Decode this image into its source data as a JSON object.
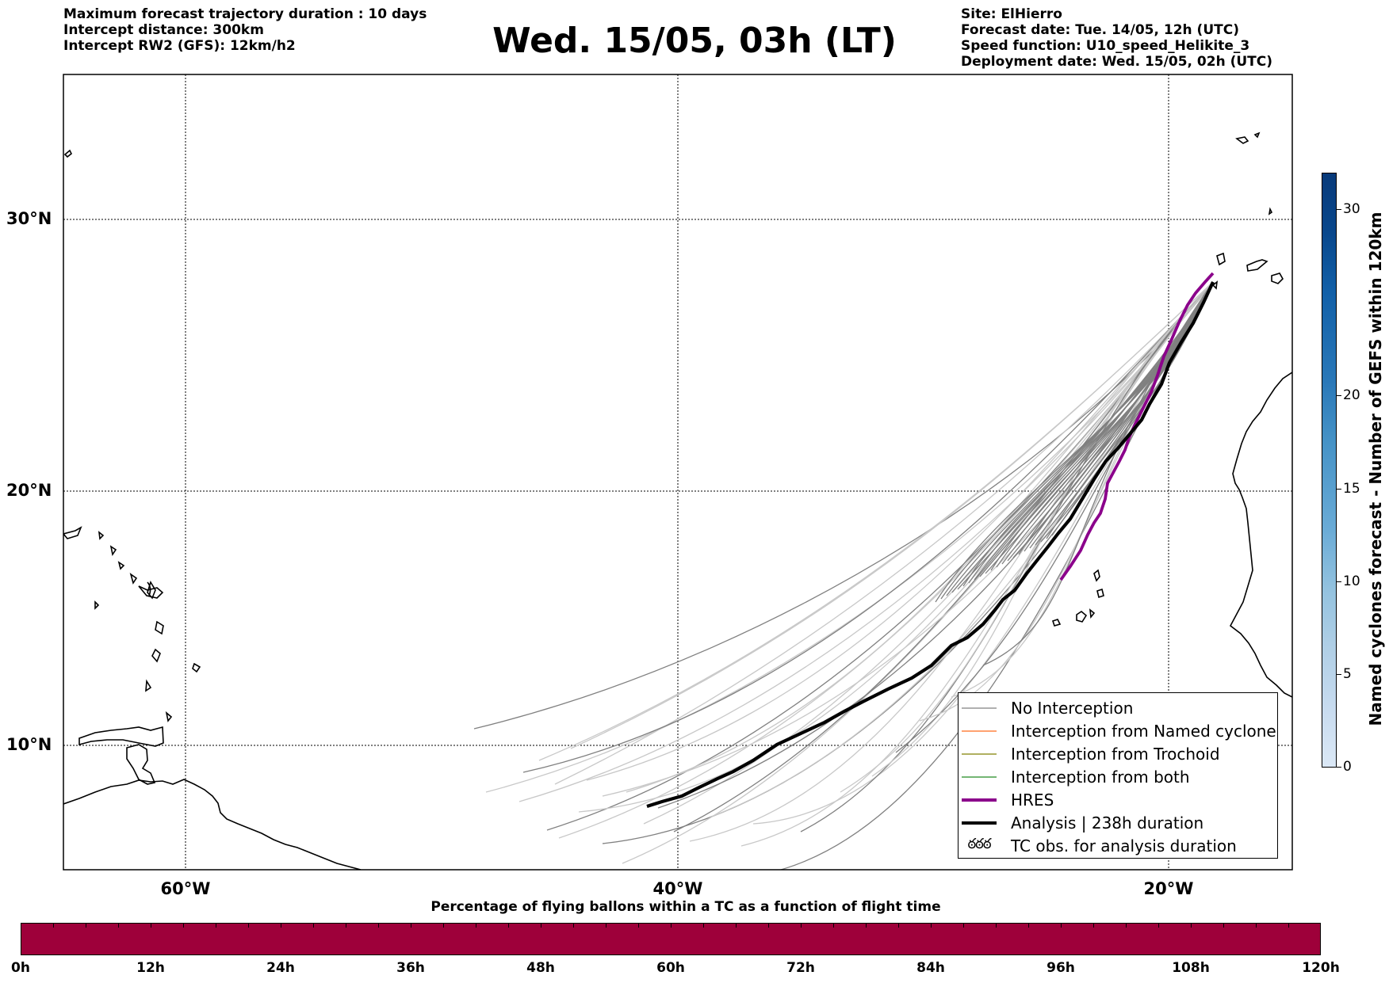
{
  "header_left": {
    "line1": "Maximum forecast trajectory duration : 10 days",
    "line2": "Intercept distance: 300km",
    "line3": "Intercept RW2 (GFS):  12km/h2"
  },
  "title": "Wed. 15/05, 03h (LT)",
  "header_right": {
    "line1": "Site: ElHierro",
    "line2": "Forecast date: Tue. 14/05, 12h (UTC)",
    "line3": "Speed function: U10_speed_Helikite_3",
    "line4": "Deployment date: Wed. 15/05, 02h (UTC)"
  },
  "map": {
    "lat_labels": [
      "30°N",
      "20°N",
      "10°N"
    ],
    "lon_labels": [
      "60°W",
      "40°W",
      "20°W"
    ],
    "colors": {
      "ensemble_near": "#808080",
      "ensemble_far": "#c8c8c8",
      "analysis": "#000000",
      "hres": "#8b008b"
    }
  },
  "legend": {
    "items": [
      {
        "label": "No Interception",
        "color": "#808080",
        "style": "thin"
      },
      {
        "label": "Interception from Named cyclone",
        "color": "#ff6a1a",
        "style": "thin"
      },
      {
        "label": "Interception from Trochoid",
        "color": "#808000",
        "style": "thin"
      },
      {
        "label": "Interception from both",
        "color": "#228b22",
        "style": "thin"
      },
      {
        "label": "HRES",
        "color": "#8b008b",
        "style": "thick"
      },
      {
        "label": "Analysis | 238h duration",
        "color": "#000000",
        "style": "thick"
      },
      {
        "label": "TC obs. for analysis duration",
        "color": "#000000",
        "style": "symbol",
        "symbol": "ఠ"
      }
    ]
  },
  "colorbar_right": {
    "label": "Named cyclones forecast - Number of GEFS within 120km",
    "ticks": [
      "0",
      "5",
      "10",
      "15",
      "20",
      "30"
    ]
  },
  "colorbar_bottom": {
    "title": "Percentage of flying ballons within a TC as a function of flight time",
    "color": "#9e003a",
    "ticks": [
      "0h",
      "12h",
      "24h",
      "36h",
      "48h",
      "60h",
      "72h",
      "84h",
      "96h",
      "108h",
      "120h"
    ]
  }
}
